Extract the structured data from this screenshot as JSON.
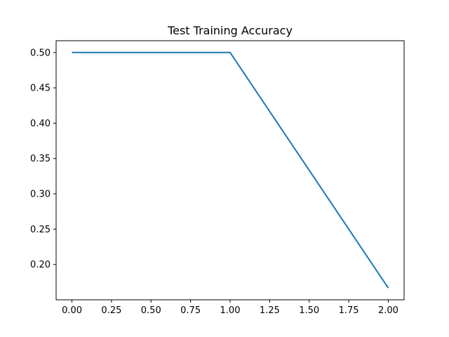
{
  "chart_data": {
    "type": "line",
    "title": "Test Training Accuracy",
    "xlabel": "",
    "ylabel": "",
    "x": [
      0,
      1,
      2
    ],
    "series": [
      {
        "values": [
          0.5,
          0.5,
          0.1667
        ],
        "color": "#1f77b4"
      }
    ],
    "xlim": [
      -0.1,
      2.1
    ],
    "ylim": [
      0.15,
      0.5167
    ],
    "xticks": [
      0,
      0.25,
      0.5,
      0.75,
      1,
      1.25,
      1.5,
      1.75,
      2
    ],
    "xtick_labels": [
      "0.00",
      "0.25",
      "0.50",
      "0.75",
      "1.00",
      "1.25",
      "1.50",
      "1.75",
      "2.00"
    ],
    "yticks": [
      0.2,
      0.25,
      0.3,
      0.35,
      0.4,
      0.45,
      0.5
    ],
    "ytick_labels": [
      "0.20",
      "0.25",
      "0.30",
      "0.35",
      "0.40",
      "0.45",
      "0.50"
    ],
    "grid": false,
    "legend": "none"
  }
}
